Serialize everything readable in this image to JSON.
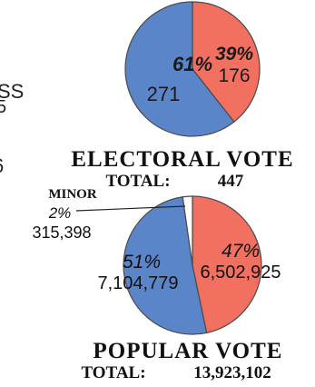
{
  "side_fragments": [
    "SS",
    "5",
    "6"
  ],
  "chart_data": [
    {
      "type": "pie",
      "title": "ELECTORAL VOTE",
      "total_label": "TOTAL:",
      "total_value": "447",
      "slices": [
        {
          "percent_label": "61%",
          "value_label": "271",
          "value": 271,
          "color": "#5b85c9"
        },
        {
          "percent_label": "39%",
          "value_label": "176",
          "value": 176,
          "color": "#f2705f"
        }
      ]
    },
    {
      "type": "pie",
      "title": "POPULAR VOTE",
      "total_label": "TOTAL:",
      "total_value": "13,923,102",
      "slices": [
        {
          "percent_label": "47%",
          "value_label": "6,502,925",
          "value": 6502925,
          "color": "#f2705f"
        },
        {
          "percent_label": "51%",
          "value_label": "7,104,779",
          "value": 7104779,
          "color": "#5b85c9"
        },
        {
          "name": "MINOR",
          "percent_label": "2%",
          "value_label": "315,398",
          "value": 315398,
          "color": "#ffffff"
        }
      ]
    }
  ]
}
